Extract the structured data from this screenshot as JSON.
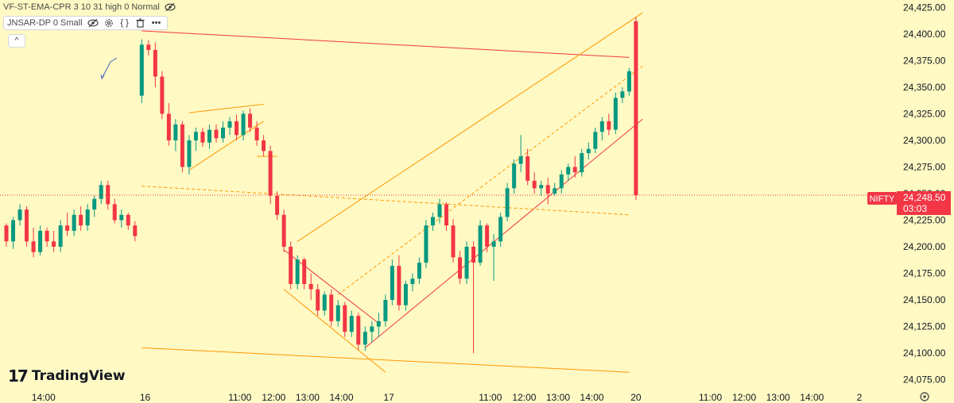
{
  "legend": {
    "indicator1": "VF-ST-EMA-CPR 3 10 31 high 0 Normal",
    "indicator2": "JNSAR-DP 0 Small",
    "controls": [
      "eye-off-icon",
      "eye-icon",
      "gear-icon",
      "braces-icon",
      "trash-icon",
      "more-icon"
    ]
  },
  "collapse_label": "^",
  "watermark": "TradingView",
  "price_tag": {
    "symbol": "NIFTY",
    "price": "24,248.50",
    "timer": "03:03"
  },
  "colors": {
    "up": "#089981",
    "down": "#f23645",
    "background": "#fff9c4",
    "trendline_red": "#f23645",
    "trendline_orange": "#ff9800",
    "price_line": "#f23645"
  },
  "chart_data": {
    "type": "candlestick",
    "y_axis": {
      "min": 24065,
      "max": 24432,
      "ticks": [
        24425,
        24400,
        24375,
        24350,
        24325,
        24300,
        24275,
        24250,
        24225,
        24200,
        24175,
        24150,
        24125,
        24100,
        24075
      ],
      "tick_labels": [
        "24,425.00",
        "24,400.00",
        "24,375.00",
        "24,350.00",
        "24,325.00",
        "24,300.00",
        "24,275.00",
        "24,250.00",
        "24,225.00",
        "24,200.00",
        "24,175.00",
        "24,150.00",
        "24,125.00",
        "24,100.00",
        "24,075.00"
      ]
    },
    "x_axis": {
      "labels": [
        {
          "t": 0.5,
          "label": "14:00"
        },
        {
          "t": 15.5,
          "label": "16"
        },
        {
          "t": 29.5,
          "label": "11:00"
        },
        {
          "t": 34.5,
          "label": "12:00"
        },
        {
          "t": 39.5,
          "label": "13:00"
        },
        {
          "t": 44.5,
          "label": "14:00"
        },
        {
          "t": 51.5,
          "label": "17"
        },
        {
          "t": 66.5,
          "label": "11:00"
        },
        {
          "t": 71.5,
          "label": "12:00"
        },
        {
          "t": 76.5,
          "label": "13:00"
        },
        {
          "t": 81.5,
          "label": "14:00"
        },
        {
          "t": 88,
          "label": "20"
        },
        {
          "t": 99,
          "label": "11:00"
        },
        {
          "t": 104,
          "label": "12:00"
        },
        {
          "t": 109,
          "label": "13:00"
        },
        {
          "t": 114,
          "label": "14:00"
        },
        {
          "t": 121,
          "label": "2"
        }
      ],
      "t_min": -5,
      "t_max": 127
    },
    "candles": [
      {
        "t": -5,
        "o": 24220,
        "h": 24222,
        "l": 24200,
        "c": 24205
      },
      {
        "t": -4,
        "o": 24205,
        "h": 24228,
        "l": 24198,
        "c": 24225
      },
      {
        "t": -3,
        "o": 24225,
        "h": 24240,
        "l": 24220,
        "c": 24235
      },
      {
        "t": -2,
        "o": 24235,
        "h": 24238,
        "l": 24200,
        "c": 24205
      },
      {
        "t": -1,
        "o": 24205,
        "h": 24218,
        "l": 24190,
        "c": 24195
      },
      {
        "t": 0,
        "o": 24195,
        "h": 24220,
        "l": 24192,
        "c": 24215
      },
      {
        "t": 1,
        "o": 24215,
        "h": 24218,
        "l": 24200,
        "c": 24205
      },
      {
        "t": 2,
        "o": 24205,
        "h": 24215,
        "l": 24195,
        "c": 24200
      },
      {
        "t": 3,
        "o": 24200,
        "h": 24225,
        "l": 24195,
        "c": 24220
      },
      {
        "t": 4,
        "o": 24220,
        "h": 24232,
        "l": 24210,
        "c": 24215
      },
      {
        "t": 5,
        "o": 24215,
        "h": 24235,
        "l": 24210,
        "c": 24230
      },
      {
        "t": 6,
        "o": 24230,
        "h": 24238,
        "l": 24215,
        "c": 24220
      },
      {
        "t": 7,
        "o": 24220,
        "h": 24240,
        "l": 24215,
        "c": 24235
      },
      {
        "t": 8,
        "o": 24235,
        "h": 24248,
        "l": 24228,
        "c": 24245
      },
      {
        "t": 9,
        "o": 24245,
        "h": 24262,
        "l": 24240,
        "c": 24258
      },
      {
        "t": 10,
        "o": 24258,
        "h": 24262,
        "l": 24235,
        "c": 24240
      },
      {
        "t": 11,
        "o": 24240,
        "h": 24245,
        "l": 24222,
        "c": 24225
      },
      {
        "t": 12,
        "o": 24225,
        "h": 24235,
        "l": 24218,
        "c": 24230
      },
      {
        "t": 13,
        "o": 24230,
        "h": 24232,
        "l": 24216,
        "c": 24220
      },
      {
        "t": 14,
        "o": 24220,
        "h": 24224,
        "l": 24205,
        "c": 24210
      },
      {
        "t": 15,
        "o": 24342,
        "h": 24395,
        "l": 24335,
        "c": 24390
      },
      {
        "t": 16,
        "o": 24390,
        "h": 24394,
        "l": 24380,
        "c": 24385
      },
      {
        "t": 17,
        "o": 24385,
        "h": 24392,
        "l": 24350,
        "c": 24360
      },
      {
        "t": 18,
        "o": 24360,
        "h": 24365,
        "l": 24320,
        "c": 24325
      },
      {
        "t": 19,
        "o": 24325,
        "h": 24335,
        "l": 24295,
        "c": 24300
      },
      {
        "t": 20,
        "o": 24300,
        "h": 24320,
        "l": 24290,
        "c": 24315
      },
      {
        "t": 21,
        "o": 24315,
        "h": 24318,
        "l": 24270,
        "c": 24275
      },
      {
        "t": 22,
        "o": 24275,
        "h": 24305,
        "l": 24268,
        "c": 24300
      },
      {
        "t": 23,
        "o": 24300,
        "h": 24312,
        "l": 24290,
        "c": 24308
      },
      {
        "t": 24,
        "o": 24308,
        "h": 24312,
        "l": 24294,
        "c": 24298
      },
      {
        "t": 25,
        "o": 24298,
        "h": 24315,
        "l": 24292,
        "c": 24310
      },
      {
        "t": 26,
        "o": 24310,
        "h": 24315,
        "l": 24298,
        "c": 24302
      },
      {
        "t": 27,
        "o": 24302,
        "h": 24318,
        "l": 24298,
        "c": 24312
      },
      {
        "t": 28,
        "o": 24312,
        "h": 24322,
        "l": 24305,
        "c": 24318
      },
      {
        "t": 29,
        "o": 24318,
        "h": 24324,
        "l": 24300,
        "c": 24305
      },
      {
        "t": 30,
        "o": 24305,
        "h": 24328,
        "l": 24300,
        "c": 24325
      },
      {
        "t": 31,
        "o": 24325,
        "h": 24330,
        "l": 24308,
        "c": 24312
      },
      {
        "t": 32,
        "o": 24312,
        "h": 24318,
        "l": 24295,
        "c": 24300
      },
      {
        "t": 33,
        "o": 24300,
        "h": 24305,
        "l": 24285,
        "c": 24290
      },
      {
        "t": 34,
        "o": 24290,
        "h": 24295,
        "l": 24240,
        "c": 24248
      },
      {
        "t": 35,
        "o": 24248,
        "h": 24252,
        "l": 24225,
        "c": 24230
      },
      {
        "t": 36,
        "o": 24230,
        "h": 24235,
        "l": 24195,
        "c": 24200
      },
      {
        "t": 37,
        "o": 24200,
        "h": 24205,
        "l": 24160,
        "c": 24165
      },
      {
        "t": 38,
        "o": 24165,
        "h": 24192,
        "l": 24160,
        "c": 24188
      },
      {
        "t": 39,
        "o": 24188,
        "h": 24190,
        "l": 24160,
        "c": 24165
      },
      {
        "t": 40,
        "o": 24165,
        "h": 24175,
        "l": 24150,
        "c": 24160
      },
      {
        "t": 41,
        "o": 24160,
        "h": 24165,
        "l": 24135,
        "c": 24140
      },
      {
        "t": 42,
        "o": 24140,
        "h": 24158,
        "l": 24135,
        "c": 24155
      },
      {
        "t": 43,
        "o": 24155,
        "h": 24160,
        "l": 24125,
        "c": 24130
      },
      {
        "t": 44,
        "o": 24130,
        "h": 24150,
        "l": 24125,
        "c": 24145
      },
      {
        "t": 45,
        "o": 24145,
        "h": 24148,
        "l": 24115,
        "c": 24120
      },
      {
        "t": 46,
        "o": 24120,
        "h": 24140,
        "l": 24115,
        "c": 24135
      },
      {
        "t": 47,
        "o": 24135,
        "h": 24138,
        "l": 24103,
        "c": 24108
      },
      {
        "t": 48,
        "o": 24108,
        "h": 24125,
        "l": 24102,
        "c": 24120
      },
      {
        "t": 49,
        "o": 24120,
        "h": 24130,
        "l": 24110,
        "c": 24125
      },
      {
        "t": 50,
        "o": 24125,
        "h": 24138,
        "l": 24115,
        "c": 24130
      },
      {
        "t": 51,
        "o": 24130,
        "h": 24155,
        "l": 24125,
        "c": 24150
      },
      {
        "t": 52,
        "o": 24150,
        "h": 24188,
        "l": 24145,
        "c": 24182
      },
      {
        "t": 53,
        "o": 24182,
        "h": 24192,
        "l": 24140,
        "c": 24145
      },
      {
        "t": 54,
        "o": 24145,
        "h": 24168,
        "l": 24140,
        "c": 24165
      },
      {
        "t": 55,
        "o": 24165,
        "h": 24175,
        "l": 24158,
        "c": 24170
      },
      {
        "t": 56,
        "o": 24170,
        "h": 24190,
        "l": 24165,
        "c": 24185
      },
      {
        "t": 57,
        "o": 24185,
        "h": 24225,
        "l": 24180,
        "c": 24220
      },
      {
        "t": 58,
        "o": 24220,
        "h": 24232,
        "l": 24215,
        "c": 24228
      },
      {
        "t": 59,
        "o": 24228,
        "h": 24245,
        "l": 24222,
        "c": 24240
      },
      {
        "t": 60,
        "o": 24240,
        "h": 24242,
        "l": 24215,
        "c": 24220
      },
      {
        "t": 61,
        "o": 24220,
        "h": 24226,
        "l": 24185,
        "c": 24190
      },
      {
        "t": 62,
        "o": 24190,
        "h": 24196,
        "l": 24165,
        "c": 24170
      },
      {
        "t": 63,
        "o": 24170,
        "h": 24205,
        "l": 24165,
        "c": 24200
      },
      {
        "t": 64,
        "o": 24200,
        "h": 24205,
        "l": 24100,
        "c": 24185
      },
      {
        "t": 65,
        "o": 24185,
        "h": 24225,
        "l": 24182,
        "c": 24220
      },
      {
        "t": 66,
        "o": 24220,
        "h": 24222,
        "l": 24195,
        "c": 24200
      },
      {
        "t": 67,
        "o": 24200,
        "h": 24212,
        "l": 24168,
        "c": 24205
      },
      {
        "t": 68,
        "o": 24205,
        "h": 24232,
        "l": 24200,
        "c": 24228
      },
      {
        "t": 69,
        "o": 24228,
        "h": 24260,
        "l": 24224,
        "c": 24255
      },
      {
        "t": 70,
        "o": 24255,
        "h": 24282,
        "l": 24250,
        "c": 24278
      },
      {
        "t": 71,
        "o": 24278,
        "h": 24305,
        "l": 24270,
        "c": 24285
      },
      {
        "t": 72,
        "o": 24285,
        "h": 24292,
        "l": 24258,
        "c": 24262
      },
      {
        "t": 73,
        "o": 24262,
        "h": 24270,
        "l": 24250,
        "c": 24255
      },
      {
        "t": 74,
        "o": 24255,
        "h": 24262,
        "l": 24248,
        "c": 24258
      },
      {
        "t": 75,
        "o": 24258,
        "h": 24265,
        "l": 24240,
        "c": 24250
      },
      {
        "t": 76,
        "o": 24250,
        "h": 24260,
        "l": 24248,
        "c": 24255
      },
      {
        "t": 77,
        "o": 24255,
        "h": 24272,
        "l": 24250,
        "c": 24268
      },
      {
        "t": 78,
        "o": 24268,
        "h": 24278,
        "l": 24262,
        "c": 24275
      },
      {
        "t": 79,
        "o": 24275,
        "h": 24285,
        "l": 24265,
        "c": 24270
      },
      {
        "t": 80,
        "o": 24270,
        "h": 24292,
        "l": 24266,
        "c": 24288
      },
      {
        "t": 81,
        "o": 24288,
        "h": 24298,
        "l": 24282,
        "c": 24292
      },
      {
        "t": 82,
        "o": 24292,
        "h": 24312,
        "l": 24288,
        "c": 24308
      },
      {
        "t": 83,
        "o": 24308,
        "h": 24322,
        "l": 24300,
        "c": 24318
      },
      {
        "t": 84,
        "o": 24318,
        "h": 24325,
        "l": 24305,
        "c": 24310
      },
      {
        "t": 85,
        "o": 24310,
        "h": 24345,
        "l": 24306,
        "c": 24340
      },
      {
        "t": 86,
        "o": 24340,
        "h": 24350,
        "l": 24335,
        "c": 24346
      },
      {
        "t": 87,
        "o": 24346,
        "h": 24368,
        "l": 24342,
        "c": 24365
      },
      {
        "t": 88,
        "o": 24412,
        "h": 24416,
        "l": 24244,
        "c": 24248.5
      }
    ],
    "trendlines": [
      {
        "name": "upper-red-line",
        "color": "#f23645",
        "from": {
          "t": 15,
          "v": 24403
        },
        "to": {
          "t": 87,
          "v": 24378
        }
      },
      {
        "name": "lower-orange-line",
        "color": "#ff9800",
        "from": {
          "t": 15,
          "v": 24105
        },
        "to": {
          "t": 87,
          "v": 24082
        }
      },
      {
        "name": "channel-upper-line",
        "color": "#ff9800",
        "from": {
          "t": 38,
          "v": 24205
        },
        "to": {
          "t": 89,
          "v": 24420
        }
      },
      {
        "name": "channel-lower-line",
        "color": "#f23645",
        "from": {
          "t": 48,
          "v": 24105
        },
        "to": {
          "t": 89,
          "v": 24320
        }
      },
      {
        "name": "channel-mid-dashed-line",
        "color": "#ff9800",
        "dashed": true,
        "from": {
          "t": 44,
          "v": 24155
        },
        "to": {
          "t": 89,
          "v": 24370
        }
      },
      {
        "name": "horizontal-dashed-line",
        "color": "#ff9800",
        "dashed": true,
        "from": {
          "t": 15,
          "v": 24257
        },
        "to": {
          "t": 87,
          "v": 24230
        }
      },
      {
        "name": "wedge-upper-line",
        "color": "#ff9800",
        "from": {
          "t": 22,
          "v": 24326
        },
        "to": {
          "t": 33,
          "v": 24334
        }
      },
      {
        "name": "wedge-lower-line",
        "color": "#ff9800",
        "from": {
          "t": 22,
          "v": 24272
        },
        "to": {
          "t": 33,
          "v": 24318
        }
      },
      {
        "name": "falling-wedge-red-line",
        "color": "#f23645",
        "from": {
          "t": 36,
          "v": 24197
        },
        "to": {
          "t": 50,
          "v": 24128
        }
      },
      {
        "name": "falling-wedge-orange-line",
        "color": "#ff9800",
        "from": {
          "t": 36,
          "v": 24160
        },
        "to": {
          "t": 51,
          "v": 24082
        }
      },
      {
        "name": "short-orange-tick-line",
        "color": "#ff9800",
        "from": {
          "t": 32,
          "v": 24285
        },
        "to": {
          "t": 35,
          "v": 24285
        }
      }
    ],
    "current_price": 24248.5
  }
}
